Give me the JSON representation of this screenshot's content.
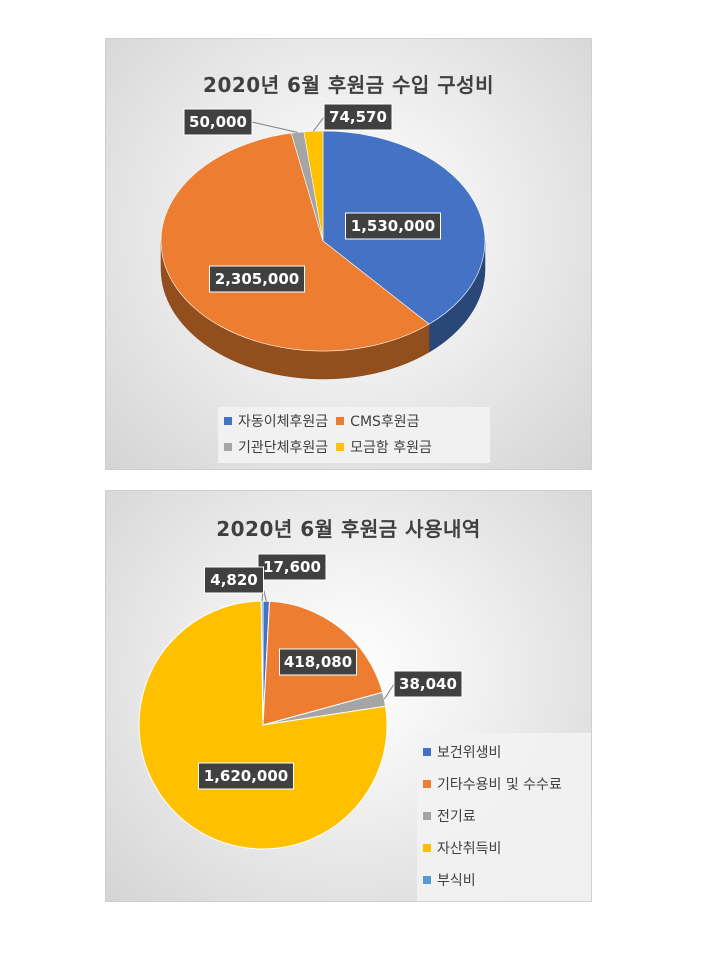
{
  "chart_data": [
    {
      "type": "pie",
      "title": "2020년 6월 후원금 수입 구성비",
      "categories": [
        "자동이체후원금",
        "CMS후원금",
        "기관단체후원금",
        "모금함 후원금"
      ],
      "values": [
        1530000,
        2305000,
        50000,
        74570
      ],
      "data_labels": [
        "1,530,000",
        "2,305,000",
        "50,000",
        "74,570"
      ],
      "colors": [
        "#4472C4",
        "#ED7D31",
        "#A5A5A5",
        "#FFC000"
      ],
      "legend": "bottom",
      "three_d": true
    },
    {
      "type": "pie",
      "title": "2020년 6월 후원금 사용내역",
      "categories": [
        "보건위생비",
        "기타수용비 및 수수료",
        "전기료",
        "자산취득비",
        "부식비"
      ],
      "values": [
        17600,
        418080,
        38040,
        1620000,
        4820
      ],
      "data_labels": [
        "17,600",
        "418,080",
        "38,040",
        "1,620,000",
        "4,820"
      ],
      "colors": [
        "#4472C4",
        "#ED7D31",
        "#A5A5A5",
        "#FFC000",
        "#5B9BD5"
      ],
      "legend": "right"
    }
  ]
}
